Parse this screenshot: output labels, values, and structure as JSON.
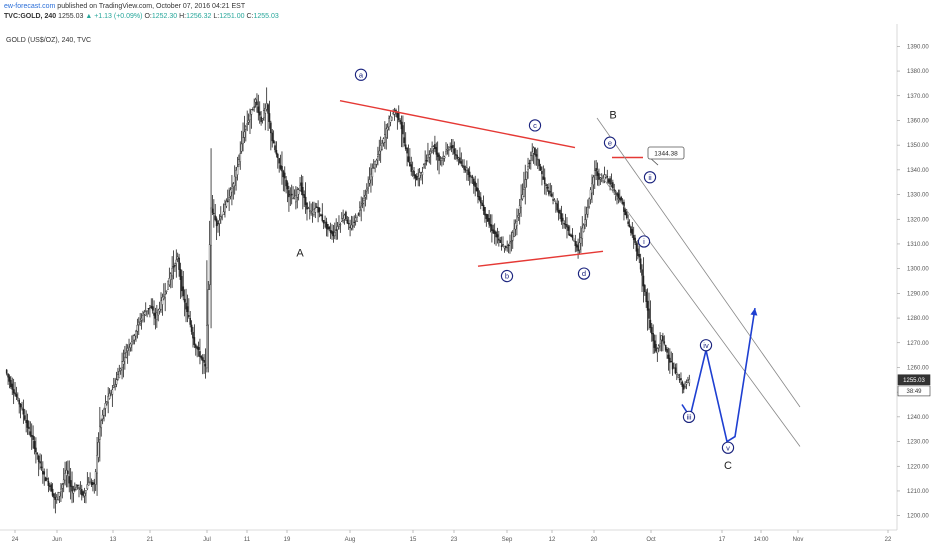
{
  "header": {
    "site": "ew-forecast.com",
    "published": " published on TradingView.com, October 07, 2016 04:21 EST",
    "symbol": "TVC:GOLD, 240",
    "last": "1255.03",
    "change": "▲ +1.13 (+0.09%)",
    "ohlc": [
      {
        "key": "O:",
        "value": "1252.30"
      },
      {
        "key": "H:",
        "value": "1256.32"
      },
      {
        "key": "L:",
        "value": "1251.00"
      },
      {
        "key": "C:",
        "value": "1255.03"
      }
    ]
  },
  "symbol_label": "GOLD (US$/OZ), 240, TVC",
  "colors": {
    "candle": "#222222",
    "trendline": "#e53935",
    "channel": "#888888",
    "wave_label": "#1a237e",
    "projection": "#1e3fd1",
    "header_link": "#2a6ed8",
    "header_up": "#26a69a"
  },
  "chart_data": {
    "type": "candlestick",
    "ylim": [
      1195,
      1395
    ],
    "grid": false,
    "y_ticks": [
      "1200.00",
      "1210.00",
      "1220.00",
      "1230.00",
      "1240.00",
      "1250.00",
      "1260.00",
      "1270.00",
      "1280.00",
      "1290.00",
      "1300.00",
      "1310.00",
      "1320.00",
      "1330.00",
      "1340.00",
      "1350.00",
      "1360.00",
      "1370.00",
      "1380.00",
      "1390.00"
    ],
    "x_ticks": [
      "24",
      "Jun",
      "13",
      "21",
      "Jul",
      "11",
      "19",
      "Aug",
      "15",
      "23",
      "Sep",
      "12",
      "20",
      "Oct",
      "17",
      "14:00",
      "Nov",
      "22"
    ],
    "price_labels": [
      {
        "text": "1255.03",
        "value": 1255.03
      },
      {
        "text": "38:49",
        "value": 1250.5
      }
    ],
    "candles_4h": [
      [
        1259,
        1253,
        1260,
        1250
      ],
      [
        1253,
        1248,
        1256,
        1243
      ],
      [
        1248,
        1243,
        1252,
        1238
      ],
      [
        1243,
        1236,
        1247,
        1230
      ],
      [
        1236,
        1230,
        1240,
        1224
      ],
      [
        1230,
        1222,
        1234,
        1216
      ],
      [
        1222,
        1216,
        1226,
        1210
      ],
      [
        1216,
        1212,
        1219,
        1204
      ],
      [
        1212,
        1206,
        1216,
        1199
      ],
      [
        1206,
        1211,
        1214,
        1201
      ],
      [
        1211,
        1218,
        1222,
        1207
      ],
      [
        1218,
        1210,
        1224,
        1205
      ],
      [
        1210,
        1212,
        1216,
        1205
      ],
      [
        1212,
        1208,
        1218,
        1203
      ],
      [
        1208,
        1214,
        1220,
        1204
      ],
      [
        1214,
        1212,
        1218,
        1206
      ],
      [
        1212,
        1236,
        1244,
        1208
      ],
      [
        1236,
        1245,
        1250,
        1232
      ],
      [
        1245,
        1250,
        1254,
        1240
      ],
      [
        1250,
        1255,
        1260,
        1244
      ],
      [
        1255,
        1262,
        1266,
        1250
      ],
      [
        1262,
        1268,
        1272,
        1256
      ],
      [
        1268,
        1272,
        1276,
        1262
      ],
      [
        1272,
        1278,
        1282,
        1266
      ],
      [
        1278,
        1282,
        1285,
        1272
      ],
      [
        1282,
        1285,
        1290,
        1276
      ],
      [
        1285,
        1280,
        1288,
        1272
      ],
      [
        1280,
        1286,
        1292,
        1276
      ],
      [
        1286,
        1292,
        1298,
        1280
      ],
      [
        1292,
        1300,
        1306,
        1286
      ],
      [
        1300,
        1304,
        1315,
        1294
      ],
      [
        1304,
        1288,
        1306,
        1282
      ],
      [
        1288,
        1280,
        1292,
        1272
      ],
      [
        1280,
        1270,
        1284,
        1262
      ],
      [
        1270,
        1265,
        1274,
        1258
      ],
      [
        1265,
        1260,
        1268,
        1248
      ],
      [
        1260,
        1325,
        1362,
        1258
      ],
      [
        1325,
        1318,
        1330,
        1310
      ],
      [
        1318,
        1322,
        1328,
        1312
      ],
      [
        1322,
        1328,
        1332,
        1316
      ],
      [
        1328,
        1334,
        1342,
        1322
      ],
      [
        1334,
        1344,
        1350,
        1330
      ],
      [
        1344,
        1356,
        1362,
        1340
      ],
      [
        1356,
        1362,
        1368,
        1350
      ],
      [
        1362,
        1368,
        1375,
        1355
      ],
      [
        1368,
        1360,
        1372,
        1354
      ],
      [
        1360,
        1366,
        1376,
        1356
      ],
      [
        1366,
        1352,
        1368,
        1345
      ],
      [
        1352,
        1344,
        1356,
        1336
      ],
      [
        1344,
        1338,
        1348,
        1330
      ],
      [
        1338,
        1330,
        1342,
        1322
      ],
      [
        1330,
        1328,
        1334,
        1320
      ],
      [
        1328,
        1334,
        1338,
        1324
      ],
      [
        1334,
        1326,
        1338,
        1320
      ],
      [
        1326,
        1322,
        1330,
        1316
      ],
      [
        1322,
        1325,
        1330,
        1318
      ],
      [
        1325,
        1320,
        1328,
        1314
      ],
      [
        1320,
        1316,
        1322,
        1312
      ],
      [
        1316,
        1314,
        1320,
        1310
      ],
      [
        1314,
        1318,
        1324,
        1310
      ],
      [
        1318,
        1322,
        1326,
        1314
      ],
      [
        1322,
        1316,
        1326,
        1312
      ],
      [
        1316,
        1320,
        1324,
        1313
      ],
      [
        1320,
        1326,
        1330,
        1316
      ],
      [
        1326,
        1332,
        1336,
        1322
      ],
      [
        1332,
        1340,
        1344,
        1328
      ],
      [
        1340,
        1346,
        1350,
        1336
      ],
      [
        1346,
        1352,
        1356,
        1342
      ],
      [
        1352,
        1360,
        1366,
        1348
      ],
      [
        1360,
        1364,
        1368,
        1356
      ],
      [
        1364,
        1360,
        1368,
        1352
      ],
      [
        1360,
        1348,
        1362,
        1340
      ],
      [
        1348,
        1340,
        1352,
        1334
      ],
      [
        1340,
        1336,
        1344,
        1330
      ],
      [
        1336,
        1340,
        1346,
        1332
      ],
      [
        1340,
        1346,
        1352,
        1336
      ],
      [
        1346,
        1350,
        1356,
        1342
      ],
      [
        1350,
        1344,
        1354,
        1338
      ],
      [
        1344,
        1346,
        1350,
        1340
      ],
      [
        1346,
        1350,
        1356,
        1342
      ],
      [
        1350,
        1346,
        1354,
        1340
      ],
      [
        1346,
        1342,
        1350,
        1338
      ],
      [
        1342,
        1340,
        1346,
        1334
      ],
      [
        1340,
        1336,
        1342,
        1330
      ],
      [
        1336,
        1330,
        1338,
        1324
      ],
      [
        1330,
        1324,
        1332,
        1318
      ],
      [
        1324,
        1318,
        1326,
        1314
      ],
      [
        1318,
        1314,
        1322,
        1308
      ],
      [
        1314,
        1310,
        1318,
        1304
      ],
      [
        1310,
        1308,
        1314,
        1302
      ],
      [
        1308,
        1312,
        1316,
        1304
      ],
      [
        1312,
        1320,
        1326,
        1308
      ],
      [
        1320,
        1330,
        1338,
        1316
      ],
      [
        1330,
        1342,
        1350,
        1326
      ],
      [
        1342,
        1348,
        1352,
        1338
      ],
      [
        1348,
        1342,
        1350,
        1336
      ],
      [
        1342,
        1334,
        1344,
        1330
      ],
      [
        1334,
        1330,
        1338,
        1326
      ],
      [
        1330,
        1326,
        1334,
        1322
      ],
      [
        1326,
        1320,
        1330,
        1316
      ],
      [
        1320,
        1316,
        1324,
        1310
      ],
      [
        1316,
        1312,
        1320,
        1308
      ],
      [
        1312,
        1308,
        1316,
        1304
      ],
      [
        1308,
        1318,
        1322,
        1306
      ],
      [
        1318,
        1328,
        1334,
        1316
      ],
      [
        1328,
        1340,
        1346,
        1326
      ],
      [
        1340,
        1336,
        1344,
        1330
      ],
      [
        1336,
        1338,
        1342,
        1332
      ],
      [
        1338,
        1334,
        1340,
        1328
      ],
      [
        1334,
        1330,
        1336,
        1324
      ],
      [
        1330,
        1326,
        1332,
        1320
      ],
      [
        1326,
        1318,
        1328,
        1314
      ],
      [
        1318,
        1312,
        1320,
        1308
      ],
      [
        1312,
        1304,
        1314,
        1300
      ],
      [
        1304,
        1290,
        1306,
        1284
      ],
      [
        1290,
        1276,
        1292,
        1268
      ],
      [
        1276,
        1266,
        1278,
        1260
      ],
      [
        1266,
        1272,
        1276,
        1262
      ],
      [
        1272,
        1266,
        1274,
        1260
      ],
      [
        1266,
        1260,
        1268,
        1254
      ],
      [
        1260,
        1256,
        1262,
        1250
      ],
      [
        1256,
        1252,
        1258,
        1248
      ],
      [
        1252,
        1255,
        1257,
        1250
      ]
    ],
    "trendlines": [
      {
        "t0": 340,
        "p0": 1368,
        "t1": 575,
        "p1": 1349
      },
      {
        "t0": 478,
        "p0": 1301,
        "t1": 603,
        "p1": 1307
      },
      {
        "t0": 612,
        "p0": 1345,
        "t1": 643,
        "p1": 1345
      }
    ],
    "channel": [
      {
        "t0": 597,
        "p0": 1361,
        "t1": 800,
        "p1": 1244
      },
      {
        "t0": 597,
        "p0": 1340,
        "t1": 800,
        "p1": 1228
      }
    ],
    "projection_path": [
      [
        682,
        1245
      ],
      [
        690,
        1240
      ],
      [
        706,
        1267
      ],
      [
        727,
        1230
      ],
      [
        735,
        1232
      ],
      [
        755,
        1284
      ]
    ],
    "callout": {
      "text": "1344.38",
      "value": 1344.38
    },
    "wave_labels": [
      {
        "text": "a",
        "t": 361,
        "p": 1378.5,
        "circle": true
      },
      {
        "text": "b",
        "t": 507,
        "p": 1297.0,
        "circle": true
      },
      {
        "text": "c",
        "t": 535,
        "p": 1358.0,
        "circle": true
      },
      {
        "text": "d",
        "t": 584,
        "p": 1298.0,
        "circle": true
      },
      {
        "text": "e",
        "t": 610,
        "p": 1351.0,
        "circle": true
      },
      {
        "text": "i",
        "t": 644,
        "p": 1311.0,
        "circle": true
      },
      {
        "text": "ii",
        "t": 650,
        "p": 1337.0,
        "circle": true
      },
      {
        "text": "iii",
        "t": 689,
        "p": 1240.0,
        "circle": true
      },
      {
        "text": "iv",
        "t": 706,
        "p": 1269.0,
        "circle": true
      },
      {
        "text": "v",
        "t": 728,
        "p": 1227.5,
        "circle": true
      },
      {
        "text": "A",
        "t": 300,
        "p": 1306.5,
        "circle": false
      },
      {
        "text": "B",
        "t": 613,
        "p": 1362.5,
        "circle": false
      },
      {
        "text": "C",
        "t": 728,
        "p": 1220.5,
        "circle": false
      }
    ]
  }
}
